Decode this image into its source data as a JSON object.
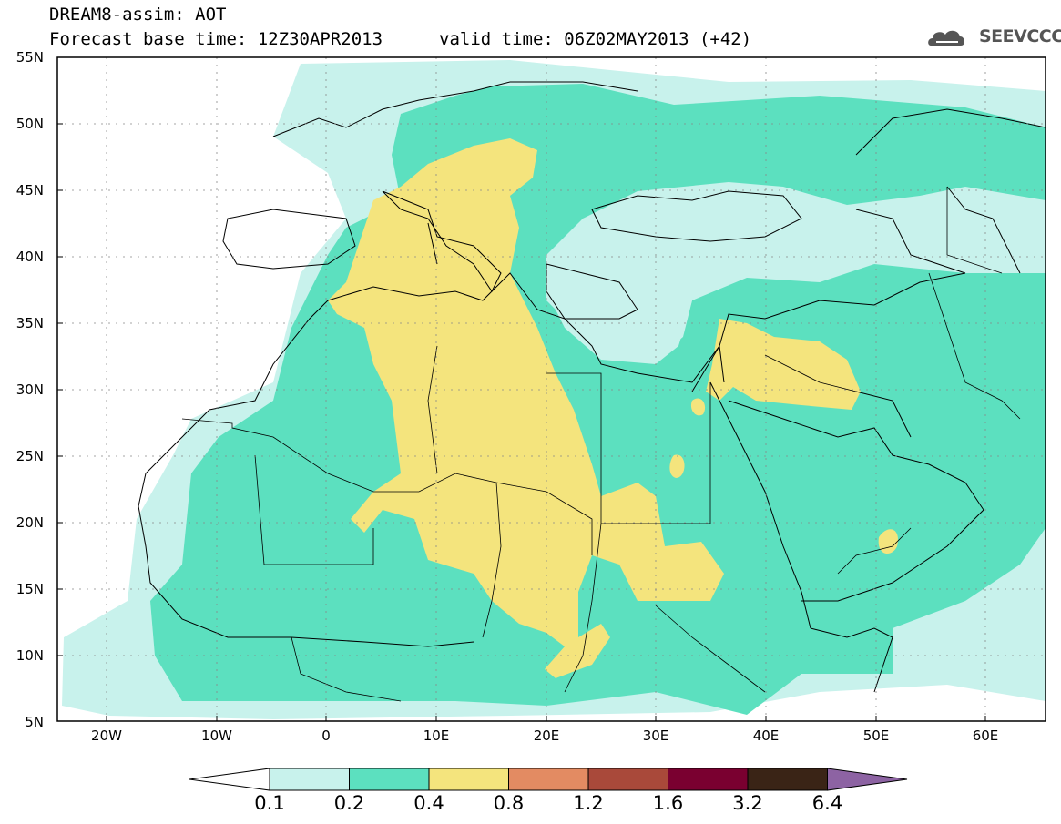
{
  "header": {
    "line1": "DREAM8-assim: AOT",
    "line2": "Forecast base time: 12Z30APR2013",
    "line3": "valid time: 06Z02MAY2013 (+42)",
    "logo_text": "SEEVCCC"
  },
  "map": {
    "lat_ticks": [
      "55N",
      "50N",
      "45N",
      "40N",
      "35N",
      "30N",
      "25N",
      "20N",
      "15N",
      "10N",
      "5N"
    ],
    "lon_ticks": [
      "20W",
      "10W",
      "0",
      "10E",
      "20E",
      "30E",
      "40E",
      "50E",
      "60E"
    ],
    "extent": {
      "lon_min": -25,
      "lon_max": 65,
      "lat_min": 5,
      "lat_max": 55
    },
    "grid": true,
    "variable": "Aerosol optical thickness"
  },
  "colorbar": {
    "levels": [
      "0.1",
      "0.2",
      "0.4",
      "0.8",
      "1.2",
      "1.6",
      "3.2",
      "6.4"
    ],
    "colors": [
      "#c8f2ec",
      "#5ce0bf",
      "#f4e47d",
      "#e38b62",
      "#a9493a",
      "#7a0030",
      "#3a2416",
      "#8d63a3"
    ]
  }
}
